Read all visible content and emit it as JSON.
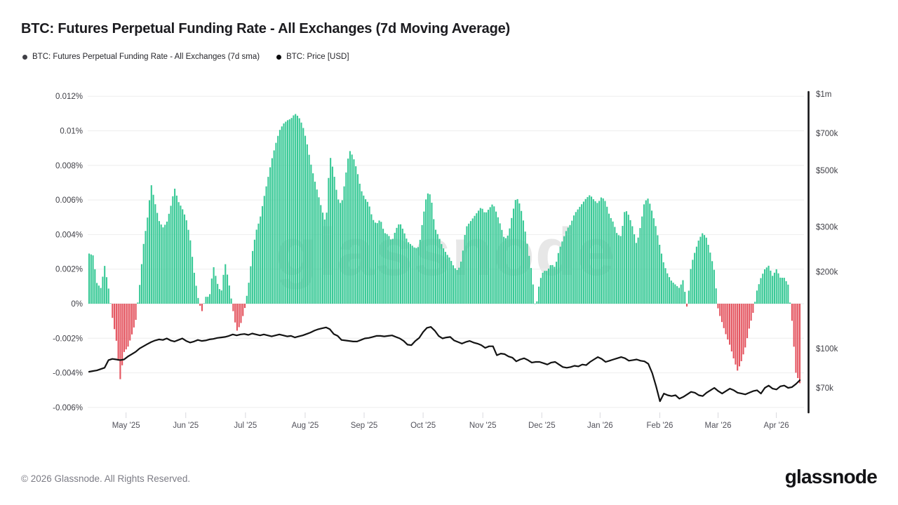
{
  "header": {
    "title": "BTC: Futures Perpetual Funding Rate - All Exchanges (7d Moving Average)"
  },
  "legend": {
    "items": [
      {
        "label": "BTC: Futures Perpetual Funding Rate - All Exchanges (7d sma)",
        "color": "#3f3f46"
      },
      {
        "label": "BTC: Price [USD]",
        "color": "#0a0a0c"
      }
    ]
  },
  "watermark": {
    "text": "glassnode"
  },
  "footer": {
    "copyright": "© 2026 Glassnode. All Rights Reserved.",
    "logo_text": "glassnode"
  },
  "chart_data": {
    "type": "bar+line",
    "title": "BTC: Futures Perpetual Funding Rate - All Exchanges (7d Moving Average)",
    "x_range_approx": [
      "mid-Apr 2025",
      "mid-Apr 2026"
    ],
    "x_ticks": [
      {
        "label": "May '25",
        "t": 0.052
      },
      {
        "label": "Jun '25",
        "t": 0.136
      },
      {
        "label": "Jul '25",
        "t": 0.22
      },
      {
        "label": "Aug '25",
        "t": 0.304
      },
      {
        "label": "Sep '25",
        "t": 0.387
      },
      {
        "label": "Oct '25",
        "t": 0.47
      },
      {
        "label": "Nov '25",
        "t": 0.554
      },
      {
        "label": "Dec '25",
        "t": 0.637
      },
      {
        "label": "Jan '26",
        "t": 0.719
      },
      {
        "label": "Feb '26",
        "t": 0.803
      },
      {
        "label": "Mar '26",
        "t": 0.885
      },
      {
        "label": "Apr '26",
        "t": 0.967
      }
    ],
    "left_axis": {
      "unit": "%",
      "grid": true,
      "ticks": [
        {
          "label": "0.012%",
          "value": 0.012
        },
        {
          "label": "0.01%",
          "value": 0.01
        },
        {
          "label": "0.008%",
          "value": 0.008
        },
        {
          "label": "0.006%",
          "value": 0.006
        },
        {
          "label": "0.004%",
          "value": 0.004
        },
        {
          "label": "0.002%",
          "value": 0.002
        },
        {
          "label": "0%",
          "value": 0
        },
        {
          "label": "-0.002%",
          "value": -0.002
        },
        {
          "label": "-0.004%",
          "value": -0.004
        },
        {
          "label": "-0.006%",
          "value": -0.006
        }
      ]
    },
    "right_axis": {
      "unit": "USD",
      "scale": "log",
      "ticks": [
        {
          "label": "$1m",
          "value": 1000
        },
        {
          "label": "$700k",
          "value": 700
        },
        {
          "label": "$500k",
          "value": 500
        },
        {
          "label": "$300k",
          "value": 300
        },
        {
          "label": "$200k",
          "value": 200
        },
        {
          "label": "$100k",
          "value": 100
        },
        {
          "label": "$70k",
          "value": 70
        }
      ]
    },
    "series": [
      {
        "name": "BTC: Futures Perpetual Funding Rate - All Exchanges (7d sma)",
        "type": "bar",
        "axis": "left",
        "unit": "%",
        "sample_interval_days": 2,
        "color_positive": "#38c996",
        "color_negative": "#e4545f",
        "values": [
          0.0029,
          0.0028,
          0.0012,
          0.0009,
          0.0022,
          0.0009,
          -0.0008,
          -0.0021,
          -0.0044,
          -0.0028,
          -0.0025,
          -0.0018,
          -0.001,
          0.001,
          0.0034,
          0.0049,
          0.0069,
          0.0058,
          0.0048,
          0.0044,
          0.0047,
          0.0056,
          0.0067,
          0.0059,
          0.0055,
          0.0049,
          0.0038,
          0.0019,
          0.0004,
          -0.0005,
          0.0004,
          0.0004,
          0.0022,
          0.0012,
          0.0006,
          0.0024,
          0.0012,
          -0.0003,
          -0.0016,
          -0.0012,
          -0.0004,
          0.001,
          0.0029,
          0.0042,
          0.0049,
          0.0061,
          0.0072,
          0.0083,
          0.0092,
          0.01,
          0.0104,
          0.0106,
          0.0107,
          0.011,
          0.0108,
          0.0103,
          0.0094,
          0.0082,
          0.0072,
          0.0063,
          0.0054,
          0.0046,
          0.0086,
          0.0076,
          0.0061,
          0.0057,
          0.0073,
          0.0089,
          0.0085,
          0.0077,
          0.0066,
          0.0061,
          0.0058,
          0.0049,
          0.0046,
          0.0049,
          0.0041,
          0.004,
          0.0036,
          0.0043,
          0.0047,
          0.0042,
          0.0036,
          0.0034,
          0.0032,
          0.0033,
          0.005,
          0.0064,
          0.0063,
          0.0044,
          0.0039,
          0.0033,
          0.0029,
          0.0026,
          0.0021,
          0.0019,
          0.0026,
          0.0044,
          0.0047,
          0.005,
          0.0053,
          0.0056,
          0.0052,
          0.0055,
          0.0058,
          0.0052,
          0.0045,
          0.0037,
          0.004,
          0.0052,
          0.0062,
          0.0057,
          0.0046,
          0.0032,
          0.0018,
          -0.0004,
          0.0013,
          0.0019,
          0.0019,
          0.0023,
          0.0021,
          0.0031,
          0.0037,
          0.0043,
          0.0046,
          0.0052,
          0.0055,
          0.0058,
          0.0061,
          0.0063,
          0.006,
          0.0058,
          0.0062,
          0.0059,
          0.0051,
          0.0047,
          0.004,
          0.0039,
          0.0055,
          0.0051,
          0.0044,
          0.0034,
          0.0045,
          0.0059,
          0.0061,
          0.0053,
          0.0044,
          0.0033,
          0.0023,
          0.0017,
          0.0013,
          0.0011,
          0.0009,
          0.0014,
          -0.0003,
          0.0022,
          0.003,
          0.0037,
          0.0041,
          0.0038,
          0.0029,
          0.0019,
          -0.0004,
          -0.0011,
          -0.0018,
          -0.0024,
          -0.0032,
          -0.0039,
          -0.0033,
          -0.0025,
          -0.0014,
          -0.0005,
          0.0008,
          0.0015,
          0.002,
          0.0022,
          0.0016,
          0.002,
          0.0015,
          0.0015,
          0.0011,
          -0.001,
          -0.004,
          -0.0046
        ]
      },
      {
        "name": "BTC: Price [USD]",
        "type": "line",
        "axis": "right",
        "unit": "USD thousands",
        "sample_interval_days": 2,
        "color": "#131313",
        "values": [
          81,
          81.5,
          82,
          83,
          84,
          90,
          91,
          90.5,
          90,
          90.5,
          93,
          95,
          97,
          100,
          102,
          104,
          106,
          107.5,
          108.5,
          108,
          109.5,
          107.5,
          106.5,
          108,
          109.5,
          107,
          105.5,
          106.5,
          108,
          107,
          107.5,
          108.5,
          109,
          110,
          110.5,
          111,
          112,
          113.5,
          112.5,
          113.5,
          114,
          113,
          114.5,
          113.5,
          112.5,
          113.5,
          112.5,
          111.5,
          112.5,
          113.5,
          112.5,
          111.5,
          112,
          110.5,
          111.5,
          112.5,
          114,
          115.5,
          117.5,
          119,
          120,
          121,
          119,
          114,
          112,
          108,
          107.5,
          107,
          106.5,
          106.5,
          108,
          109.5,
          110,
          111,
          112,
          112,
          111.5,
          112,
          112.5,
          111,
          109.5,
          107,
          103.5,
          103,
          107,
          110,
          116,
          120.5,
          121.5,
          117.5,
          112,
          109.5,
          110.5,
          111,
          107.5,
          106,
          104.5,
          106,
          107,
          105.5,
          104.5,
          103,
          100.5,
          102,
          102,
          94,
          95.5,
          95,
          93,
          92,
          89,
          90.5,
          91.5,
          90,
          88,
          88.5,
          88.5,
          87.5,
          86.5,
          88,
          88.5,
          86.5,
          84.5,
          84,
          84.5,
          85.5,
          85,
          86.5,
          86,
          88.5,
          90.5,
          92.5,
          91,
          88.5,
          89.5,
          90.5,
          91.5,
          92.5,
          91.5,
          89.5,
          90,
          90.5,
          89.5,
          89,
          87,
          80,
          71,
          62,
          66.5,
          65.5,
          65,
          65.5,
          63.5,
          64.5,
          66,
          67.5,
          67,
          65.5,
          65,
          67,
          68.5,
          70,
          68,
          66.5,
          68,
          69.5,
          68.5,
          67,
          66.5,
          66,
          67,
          68,
          68.5,
          66.5,
          70,
          71.5,
          69.5,
          69,
          71,
          71.5,
          70,
          70.5,
          72.5,
          75
        ]
      }
    ]
  }
}
